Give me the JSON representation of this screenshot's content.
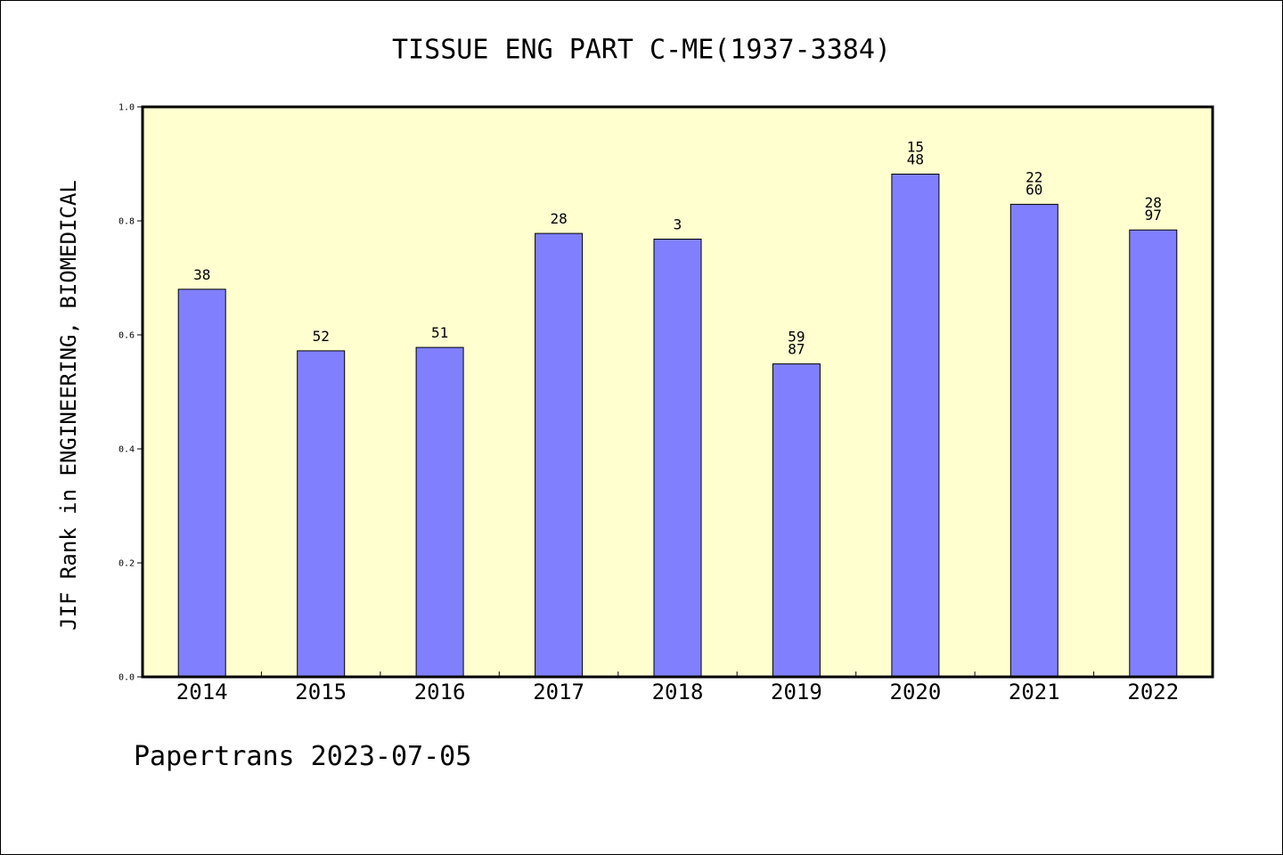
{
  "chart_data": {
    "type": "bar",
    "title": "TISSUE ENG PART C-ME(1937-3384)",
    "ylabel": "JIF Rank in ENGINEERING, BIOMEDICAL",
    "xlabel": "",
    "ylim": [
      0,
      1.0
    ],
    "yticks": [
      "0.0",
      "0.2",
      "0.4",
      "0.6",
      "0.8",
      "1.0"
    ],
    "categories": [
      "2014",
      "2015",
      "2016",
      "2017",
      "2018",
      "2019",
      "2020",
      "2021",
      "2022"
    ],
    "values": [
      0.68,
      0.572,
      0.578,
      0.778,
      0.768,
      0.549,
      0.882,
      0.829,
      0.784
    ],
    "bar_labels": [
      [
        "38"
      ],
      [
        "52"
      ],
      [
        "51"
      ],
      [
        "28"
      ],
      [
        "3"
      ],
      [
        "59",
        "87"
      ],
      [
        "15",
        "48"
      ],
      [
        "22",
        "60"
      ],
      [
        "28",
        "97"
      ]
    ],
    "bar_color": "#8080ff",
    "plot_background": "#ffffd0",
    "grid": false,
    "legend": "none"
  },
  "footer": {
    "text": "Papertrans 2023-07-05"
  }
}
